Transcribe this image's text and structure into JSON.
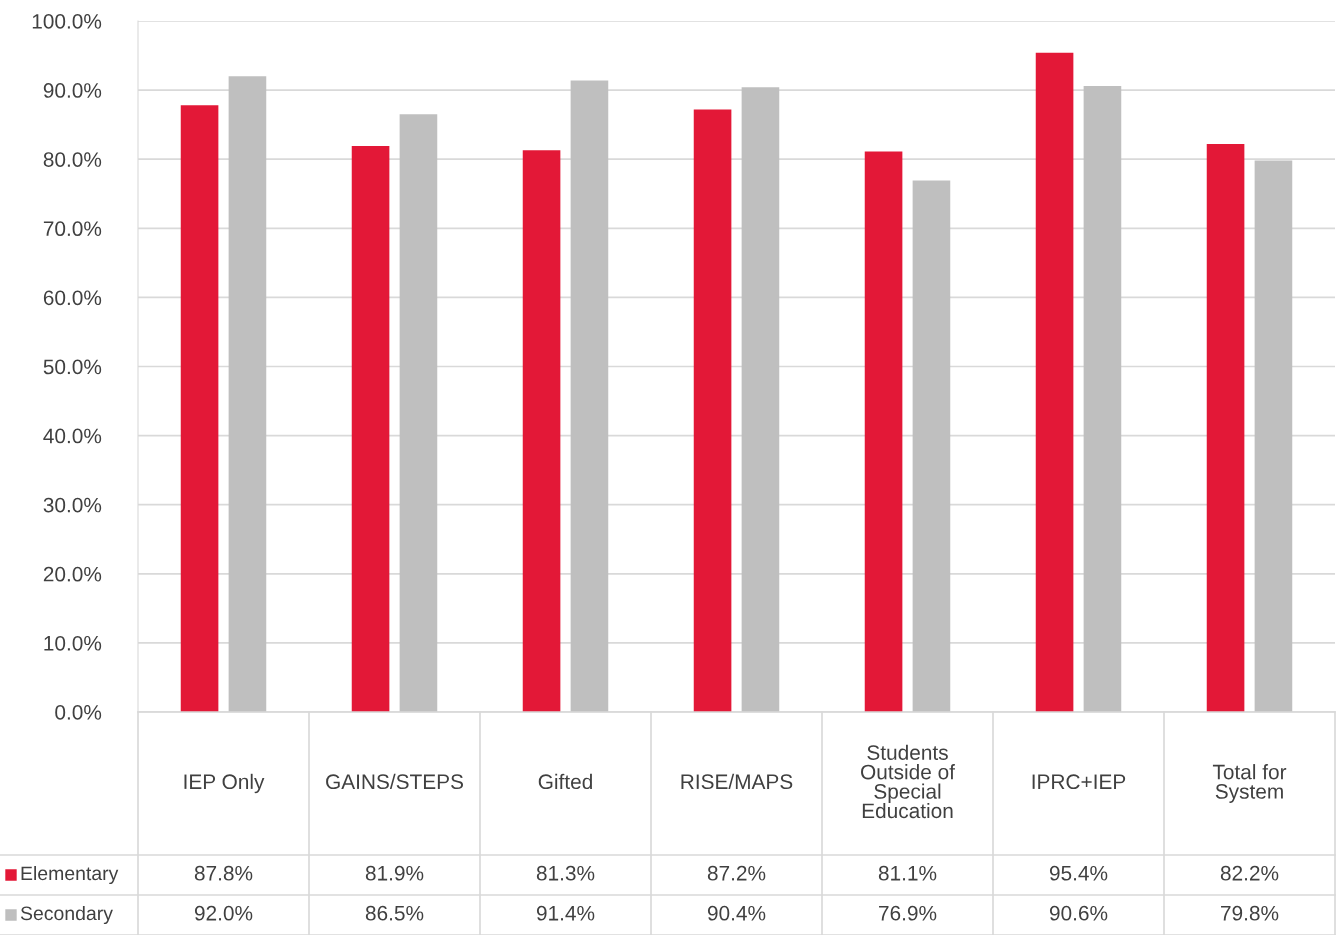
{
  "chart_data": {
    "type": "bar",
    "categories": [
      "IEP Only",
      "GAINS/STEPS",
      "Gifted",
      "RISE/MAPS",
      "Students Outside of Special Education",
      "IPRC+IEP",
      "Total for System"
    ],
    "series": [
      {
        "name": "Elementary",
        "color": "#e31837",
        "values": [
          87.8,
          81.9,
          81.3,
          87.2,
          81.1,
          95.4,
          82.2
        ],
        "value_labels": [
          "87.8%",
          "81.9%",
          "81.3%",
          "87.2%",
          "81.1%",
          "95.4%",
          "82.2%"
        ]
      },
      {
        "name": "Secondary",
        "color": "#bfbfbf",
        "values": [
          92.0,
          86.5,
          91.4,
          90.4,
          76.9,
          90.6,
          79.8
        ],
        "value_labels": [
          "92.0%",
          "86.5%",
          "91.4%",
          "90.4%",
          "76.9%",
          "90.6%",
          "79.8%"
        ]
      }
    ],
    "ylim": [
      0,
      100
    ],
    "yticks": [
      {
        "value": 0,
        "label": "0.0%"
      },
      {
        "value": 10,
        "label": "10.0%"
      },
      {
        "value": 20,
        "label": "20.0%"
      },
      {
        "value": 30,
        "label": "30.0%"
      },
      {
        "value": 40,
        "label": "40.0%"
      },
      {
        "value": 50,
        "label": "50.0%"
      },
      {
        "value": 60,
        "label": "60.0%"
      },
      {
        "value": 70,
        "label": "70.0%"
      },
      {
        "value": 80,
        "label": "80.0%"
      },
      {
        "value": 90,
        "label": "90.0%"
      },
      {
        "value": 100,
        "label": "100.0%"
      }
    ],
    "grid": "y",
    "legend": "bottom"
  }
}
